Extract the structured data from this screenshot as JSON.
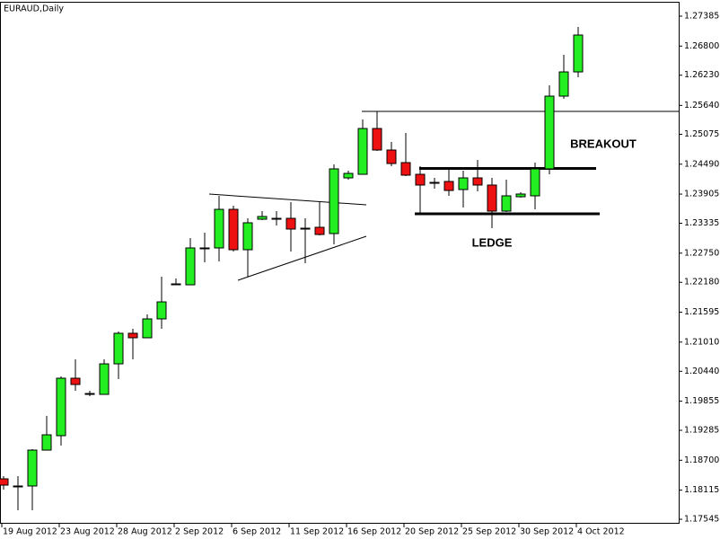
{
  "chart_data": {
    "type": "candlestick",
    "title": "EURAUD,Daily",
    "up_color": "#22ee22",
    "down_color": "#ee1111",
    "categories": [
      "19 Aug 2012",
      null,
      null,
      null,
      "23 Aug 2012",
      null,
      null,
      null,
      "28 Aug 2012",
      null,
      null,
      null,
      "2 Sep 2012",
      null,
      null,
      null,
      "6 Sep 2012",
      null,
      null,
      null,
      "11 Sep 2012",
      null,
      null,
      null,
      "16 Sep 2012",
      null,
      null,
      null,
      "20 Sep 2012",
      null,
      null,
      null,
      "25 Sep 2012",
      null,
      null,
      null,
      "30 Sep 2012",
      null,
      null,
      null,
      "4 Oct 2012"
    ],
    "open": [
      1.18336,
      1.18196,
      1.18196,
      1.18898,
      1.1918,
      1.20304,
      1.20005,
      1.19988,
      1.20585,
      1.21183,
      1.21095,
      1.21464,
      1.22149,
      1.22131,
      1.22852,
      1.22852,
      1.23607,
      1.22817,
      1.23414,
      1.23431,
      1.23431,
      1.23238,
      1.23256,
      1.23133,
      1.24222,
      1.24292,
      1.25188,
      1.24767,
      1.24521,
      1.24292,
      1.24134,
      1.24152,
      1.23994,
      1.24222,
      1.24082,
      1.23572,
      1.23853,
      1.23871,
      1.24398,
      1.25821,
      1.26295
    ],
    "high": [
      1.18389,
      1.18389,
      1.18916,
      1.19566,
      1.20339,
      1.20673,
      1.20058,
      1.20673,
      1.21218,
      1.2127,
      1.21551,
      1.22289,
      1.22254,
      1.23045,
      1.2315,
      1.23871,
      1.23677,
      1.23431,
      1.23572,
      1.23572,
      1.23748,
      1.23431,
      1.23748,
      1.24486,
      1.24363,
      1.25364,
      1.25522,
      1.24925,
      1.25101,
      1.24451,
      1.24222,
      1.24398,
      1.24363,
      1.24574,
      1.24222,
      1.24187,
      1.23941,
      1.24521,
      1.26032,
      1.26629,
      1.27174
    ],
    "low": [
      1.18125,
      1.17721,
      1.17721,
      1.18898,
      1.18986,
      1.20058,
      1.19953,
      1.19988,
      1.20286,
      1.20673,
      1.21095,
      1.2127,
      1.22149,
      1.22131,
      1.22571,
      1.22588,
      1.22781,
      1.22289,
      1.23396,
      1.23291,
      1.22781,
      1.22553,
      1.23098,
      1.22922,
      1.24187,
      1.24292,
      1.24749,
      1.24451,
      1.24257,
      1.23537,
      1.24011,
      1.23871,
      1.23642,
      1.23959,
      1.23238,
      1.23554,
      1.23836,
      1.23607,
      1.24292,
      1.25768,
      1.2619
    ],
    "close": [
      1.18213,
      1.18196,
      1.18898,
      1.19197,
      1.20304,
      1.20181,
      1.20005,
      1.20585,
      1.21183,
      1.21095,
      1.21464,
      1.21797,
      1.22149,
      1.22852,
      1.22852,
      1.23607,
      1.22817,
      1.23344,
      1.23467,
      1.23431,
      1.23221,
      1.23238,
      1.23115,
      1.24398,
      1.2431,
      1.25188,
      1.24767,
      1.24503,
      1.24275,
      1.24082,
      1.24134,
      1.23976,
      1.24222,
      1.24082,
      1.23572,
      1.23871,
      1.23906,
      1.24398,
      1.25821,
      1.26295,
      1.27016
    ],
    "ylim": [
      1.17458,
      1.27666
    ],
    "yticks": [
      1.27385,
      {
        "value": 1.268,
        "label": "1.26800"
      },
      {
        "value": 1.2623,
        "label": "1.26230"
      },
      {
        "value": 1.2564,
        "label": "1.25640"
      },
      1.25075,
      {
        "value": 1.2449,
        "label": "1.24490"
      },
      1.23905,
      1.23335,
      {
        "value": 1.2275,
        "label": "1.22750"
      },
      {
        "value": 1.2218,
        "label": "1.22180"
      },
      1.21595,
      {
        "value": 1.2101,
        "label": "1.21010"
      },
      {
        "value": 1.2044,
        "label": "1.20440"
      },
      1.19855,
      1.19285,
      {
        "value": 1.187,
        "label": "1.18700"
      },
      1.18115,
      1.17545
    ],
    "annotations": [
      "BREAKOUT",
      "LEDGE"
    ]
  }
}
